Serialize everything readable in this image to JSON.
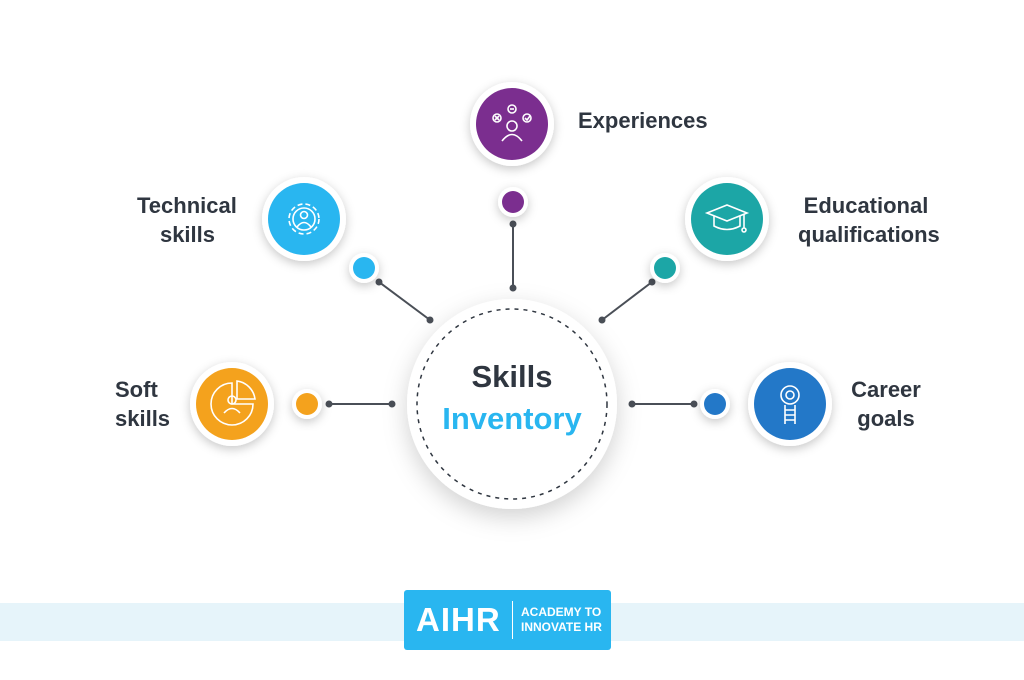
{
  "center": {
    "line1": "Skills",
    "line2": "Inventory"
  },
  "nodes": [
    {
      "id": "soft-skills",
      "label_lines": [
        "Soft",
        "skills"
      ],
      "color": "#f4a21d",
      "icon": "pie-person-icon"
    },
    {
      "id": "technical-skills",
      "label_lines": [
        "Technical",
        "skills"
      ],
      "color": "#29b6f0",
      "icon": "gear-person-icon"
    },
    {
      "id": "experiences",
      "label_lines": [
        "Experiences"
      ],
      "color": "#7b2e8f",
      "icon": "person-choices-icon"
    },
    {
      "id": "educational-qualifications",
      "label_lines": [
        "Educational",
        "qualifications"
      ],
      "color": "#1ca6a6",
      "icon": "graduation-cap-icon"
    },
    {
      "id": "career-goals",
      "label_lines": [
        "Career",
        "goals"
      ],
      "color": "#2378c8",
      "icon": "target-ladder-icon"
    }
  ],
  "logo": {
    "mark": "AIHR",
    "tagline_line1": "ACADEMY TO",
    "tagline_line2": "INNOVATE HR",
    "color": "#29b6f0"
  }
}
